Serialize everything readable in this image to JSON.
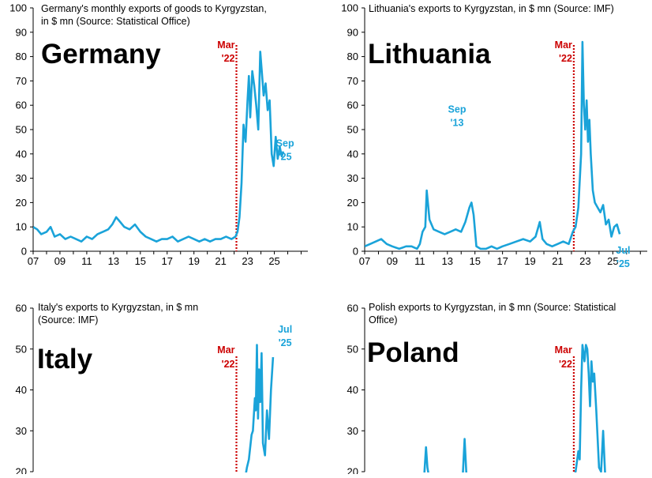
{
  "colors": {
    "series": "#1aa3d9",
    "marker": "#cc0000",
    "axis": "#000000"
  },
  "chart_data": [
    {
      "type": "line",
      "title_lines": [
        "Germany's monthly exports of goods to Kyrgyzstan,",
        "in $ mn (Source: Statistical Office)"
      ],
      "country": "Germany",
      "ylim": [
        0,
        100
      ],
      "yticks": [
        0,
        10,
        20,
        30,
        40,
        50,
        60,
        70,
        80,
        90,
        100
      ],
      "xlim": [
        2007.0,
        2027.5
      ],
      "xticks": [
        2007,
        2009,
        2011,
        2013,
        2015,
        2017,
        2019,
        2021,
        2023,
        2025
      ],
      "xtick_labels": [
        "07",
        "09",
        "11",
        "13",
        "15",
        "17",
        "19",
        "21",
        "23",
        "25"
      ],
      "marker": {
        "x": 2022.17,
        "label_lines": [
          "Mar",
          "'22"
        ]
      },
      "annotations": [
        {
          "x": 2025.8,
          "y": 43,
          "lines": [
            "Sep",
            "'25"
          ]
        }
      ],
      "series": [
        {
          "x": [
            2007.0,
            2007.3,
            2007.6,
            2008.0,
            2008.3,
            2008.6,
            2009.0,
            2009.4,
            2009.8,
            2010.2,
            2010.6,
            2011.0,
            2011.4,
            2011.8,
            2012.2,
            2012.6,
            2012.9,
            2013.2,
            2013.5,
            2013.8,
            2014.2,
            2014.6,
            2015.0,
            2015.4,
            2015.8,
            2016.2,
            2016.6,
            2017.0,
            2017.4,
            2017.8,
            2018.2,
            2018.6,
            2019.0,
            2019.4,
            2019.8,
            2020.2,
            2020.6,
            2021.0,
            2021.4,
            2021.8,
            2022.1,
            2022.25,
            2022.4,
            2022.55,
            2022.7,
            2022.85,
            2023.0,
            2023.1,
            2023.2,
            2023.35,
            2023.5,
            2023.65,
            2023.8,
            2023.95,
            2024.05,
            2024.2,
            2024.35,
            2024.5,
            2024.65,
            2024.8,
            2024.95,
            2025.1,
            2025.25,
            2025.4,
            2025.55,
            2025.67
          ],
          "values": [
            10,
            9,
            7,
            8,
            10,
            6,
            7,
            5,
            6,
            5,
            4,
            6,
            5,
            7,
            8,
            9,
            11,
            14,
            12,
            10,
            9,
            11,
            8,
            6,
            5,
            4,
            5,
            5,
            6,
            4,
            5,
            6,
            5,
            4,
            5,
            4,
            5,
            5,
            6,
            5,
            6,
            8,
            14,
            28,
            52,
            45,
            62,
            72,
            55,
            74,
            68,
            60,
            50,
            82,
            75,
            64,
            69,
            58,
            62,
            40,
            35,
            47,
            38,
            43,
            39,
            41
          ]
        }
      ]
    },
    {
      "type": "line",
      "title_lines": [
        "Lithuania's exports to Kyrgyzstan, in $ mn (Source: IMF)"
      ],
      "country": "Lithuania",
      "ylim": [
        0,
        100
      ],
      "yticks": [
        0,
        10,
        20,
        30,
        40,
        50,
        60,
        70,
        80,
        90,
        100
      ],
      "xlim": [
        2007.0,
        2027.5
      ],
      "xticks": [
        2007,
        2009,
        2011,
        2013,
        2015,
        2017,
        2019,
        2021,
        2023,
        2025
      ],
      "xtick_labels": [
        "07",
        "09",
        "11",
        "13",
        "15",
        "17",
        "19",
        "21",
        "23",
        "25"
      ],
      "marker": {
        "x": 2022.17,
        "label_lines": [
          "Mar",
          "'22"
        ]
      },
      "annotations": [
        {
          "x": 2013.7,
          "y": 57,
          "lines": [
            "Sep",
            "'13"
          ]
        },
        {
          "x": 2025.75,
          "y": -1,
          "lines": [
            "Jul",
            "'25"
          ]
        }
      ],
      "series": [
        {
          "x": [
            2007.0,
            2007.4,
            2007.8,
            2008.2,
            2008.6,
            2009.0,
            2009.5,
            2010.0,
            2010.4,
            2010.8,
            2011.0,
            2011.2,
            2011.4,
            2011.5,
            2011.7,
            2012.0,
            2012.4,
            2012.8,
            2013.2,
            2013.6,
            2014.0,
            2014.3,
            2014.6,
            2014.75,
            2014.9,
            2015.1,
            2015.4,
            2015.8,
            2016.2,
            2016.6,
            2017.0,
            2017.5,
            2018.0,
            2018.5,
            2019.0,
            2019.4,
            2019.7,
            2019.9,
            2020.2,
            2020.6,
            2021.0,
            2021.4,
            2021.8,
            2022.1,
            2022.3,
            2022.5,
            2022.7,
            2022.8,
            2022.9,
            2023.0,
            2023.1,
            2023.2,
            2023.3,
            2023.4,
            2023.55,
            2023.7,
            2023.9,
            2024.1,
            2024.3,
            2024.5,
            2024.7,
            2024.9,
            2025.1,
            2025.3,
            2025.5
          ],
          "values": [
            2,
            3,
            4,
            5,
            3,
            2,
            1,
            2,
            2,
            1,
            3,
            8,
            10,
            25,
            13,
            9,
            8,
            7,
            8,
            9,
            8,
            12,
            18,
            20,
            15,
            2,
            1,
            1,
            2,
            1,
            2,
            3,
            4,
            5,
            4,
            6,
            12,
            5,
            3,
            2,
            3,
            4,
            3,
            8,
            10,
            18,
            40,
            86,
            60,
            50,
            62,
            45,
            54,
            40,
            25,
            20,
            18,
            16,
            19,
            11,
            13,
            6,
            10,
            11,
            7
          ]
        }
      ]
    },
    {
      "type": "line",
      "title_lines": [
        "Italy's exports to Kyrgyzstan, in $ mn",
        "(Source: IMF)"
      ],
      "country": "Italy",
      "ylim": [
        20,
        60
      ],
      "yticks": [
        20,
        30,
        40,
        50,
        60
      ],
      "xlim": [
        2007.0,
        2027.5
      ],
      "marker": {
        "x": 2022.17,
        "label_lines": [
          "Mar",
          "'22"
        ]
      },
      "annotations": [
        {
          "x": 2025.8,
          "y": 54,
          "lines": [
            "Jul",
            "'25"
          ]
        }
      ],
      "series": [
        {
          "x": [
            2022.8,
            2022.95,
            2023.1,
            2023.3,
            2023.4,
            2023.55,
            2023.62,
            2023.7,
            2023.78,
            2023.86,
            2023.95,
            2024.05,
            2024.15,
            2024.3,
            2024.45,
            2024.6,
            2024.75,
            2024.9
          ],
          "values": [
            18,
            21,
            23,
            29,
            30,
            38,
            35,
            51,
            33,
            45,
            37,
            49,
            27,
            24,
            35,
            28,
            40,
            48
          ]
        }
      ]
    },
    {
      "type": "line",
      "title_lines": [
        "Polish exports to Kyrgyzstan, in $ mn (Source: Statistical",
        "Office)"
      ],
      "country": "Poland",
      "ylim": [
        20,
        60
      ],
      "yticks": [
        20,
        30,
        40,
        50,
        60
      ],
      "xlim": [
        2007.0,
        2027.5
      ],
      "marker": {
        "x": 2022.17,
        "label_lines": [
          "Mar",
          "'22"
        ]
      },
      "annotations": [],
      "series": [
        {
          "x": [
            2011.3,
            2011.45,
            2011.55,
            2011.7
          ],
          "values": [
            18,
            26,
            21,
            18
          ]
        },
        {
          "x": [
            2014.1,
            2014.25,
            2014.4
          ],
          "values": [
            18,
            28,
            18
          ]
        },
        {
          "x": [
            2022.1,
            2022.3,
            2022.5,
            2022.6,
            2022.7,
            2022.8,
            2022.95,
            2023.05,
            2023.15,
            2023.25,
            2023.35,
            2023.45,
            2023.55,
            2023.65,
            2023.8,
            2024.0,
            2024.15,
            2024.3,
            2024.45
          ],
          "values": [
            18,
            20,
            25,
            23,
            40,
            51,
            47,
            51,
            50,
            44,
            36,
            47,
            42,
            44,
            35,
            21,
            20,
            30,
            19
          ]
        }
      ]
    }
  ]
}
